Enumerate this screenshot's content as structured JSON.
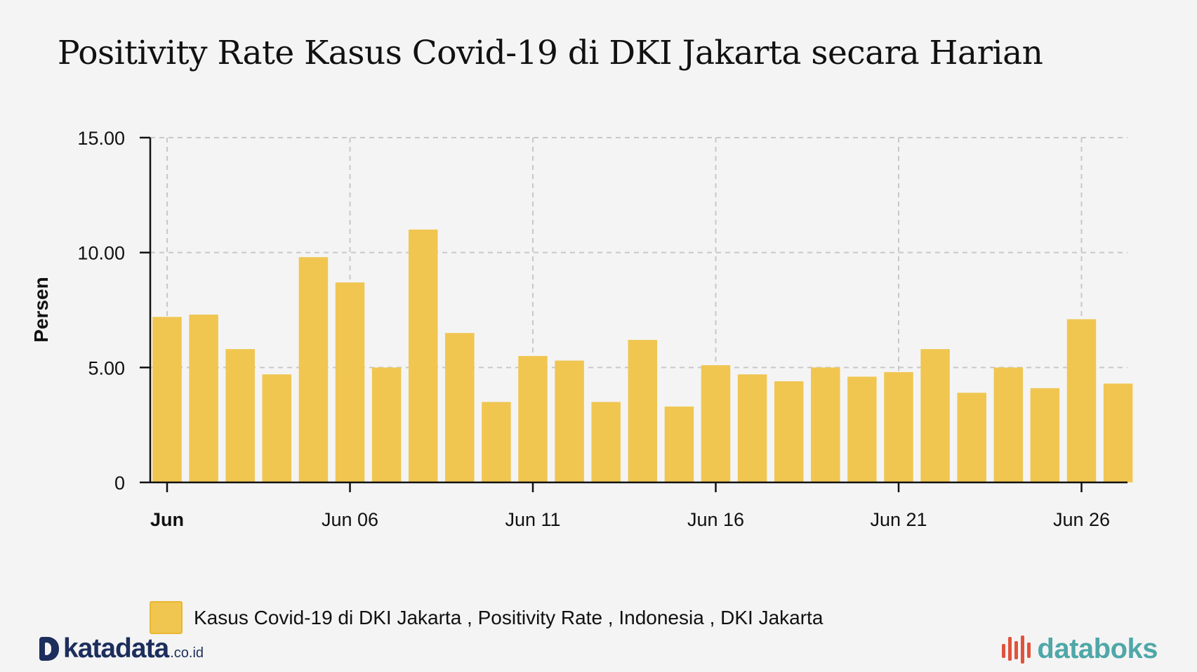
{
  "chart_data": {
    "type": "bar",
    "title": "Positivity Rate Kasus Covid-19 di DKI Jakarta secara Harian",
    "ylabel": "Persen",
    "xlabel": "",
    "ylim": [
      0,
      15
    ],
    "yticks": [
      0,
      5,
      10,
      15
    ],
    "ytick_labels": [
      "0",
      "5.00",
      "10.00",
      "15.00"
    ],
    "xticks": [
      {
        "index": 0,
        "label": "Jun",
        "bold": true
      },
      {
        "index": 5,
        "label": "Jun 06",
        "bold": false
      },
      {
        "index": 10,
        "label": "Jun 11",
        "bold": false
      },
      {
        "index": 15,
        "label": "Jun 16",
        "bold": false
      },
      {
        "index": 20,
        "label": "Jun 21",
        "bold": false
      },
      {
        "index": 25,
        "label": "Jun 26",
        "bold": false
      }
    ],
    "categories": [
      "Jun 01",
      "Jun 02",
      "Jun 03",
      "Jun 04",
      "Jun 05",
      "Jun 06",
      "Jun 07",
      "Jun 08",
      "Jun 09",
      "Jun 10",
      "Jun 11",
      "Jun 12",
      "Jun 13",
      "Jun 14",
      "Jun 15",
      "Jun 16",
      "Jun 17",
      "Jun 18",
      "Jun 19",
      "Jun 20",
      "Jun 21",
      "Jun 22",
      "Jun 23",
      "Jun 24",
      "Jun 25",
      "Jun 26",
      "Jun 27"
    ],
    "series": [
      {
        "name": "Kasus Covid-19 di DKI Jakarta , Positivity Rate , Indonesia , DKI Jakarta",
        "color": "#f0c651",
        "values": [
          7.2,
          7.3,
          5.8,
          4.7,
          9.8,
          8.7,
          5.0,
          11.0,
          6.5,
          3.5,
          5.5,
          5.3,
          3.5,
          6.2,
          3.3,
          5.1,
          4.7,
          4.4,
          5.0,
          4.6,
          4.8,
          5.8,
          3.9,
          5.0,
          4.1,
          7.1,
          4.3
        ]
      }
    ],
    "grid": true,
    "legend_position": "bottom-left"
  },
  "branding": {
    "left_name": "katadata",
    "left_suffix": ".co.id",
    "left_color": "#1c2e5c",
    "right_name": "databoks",
    "right_color": "#4fa7a8",
    "right_icon_color": "#e0533d"
  }
}
